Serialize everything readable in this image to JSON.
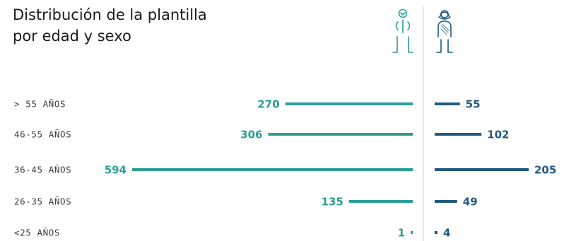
{
  "title_lines": [
    "Distribución de la plantilla",
    "por edad y sexo"
  ],
  "chart_data": {
    "type": "bar",
    "orientation": "horizontal",
    "categories": [
      "> 55 AÑOS",
      "46-55 AÑOS",
      "36-45 AÑOS",
      "26-35 AÑOS",
      "<25 AÑOS"
    ],
    "series": [
      {
        "values": [
          270,
          306,
          594,
          135,
          1
        ],
        "color": "#2a9d96",
        "icon": "male-figure-icon"
      },
      {
        "values": [
          55,
          102,
          205,
          49,
          4
        ],
        "color": "#215a80",
        "icon": "female-figure-icon"
      }
    ],
    "grid": false,
    "legend": "none"
  }
}
